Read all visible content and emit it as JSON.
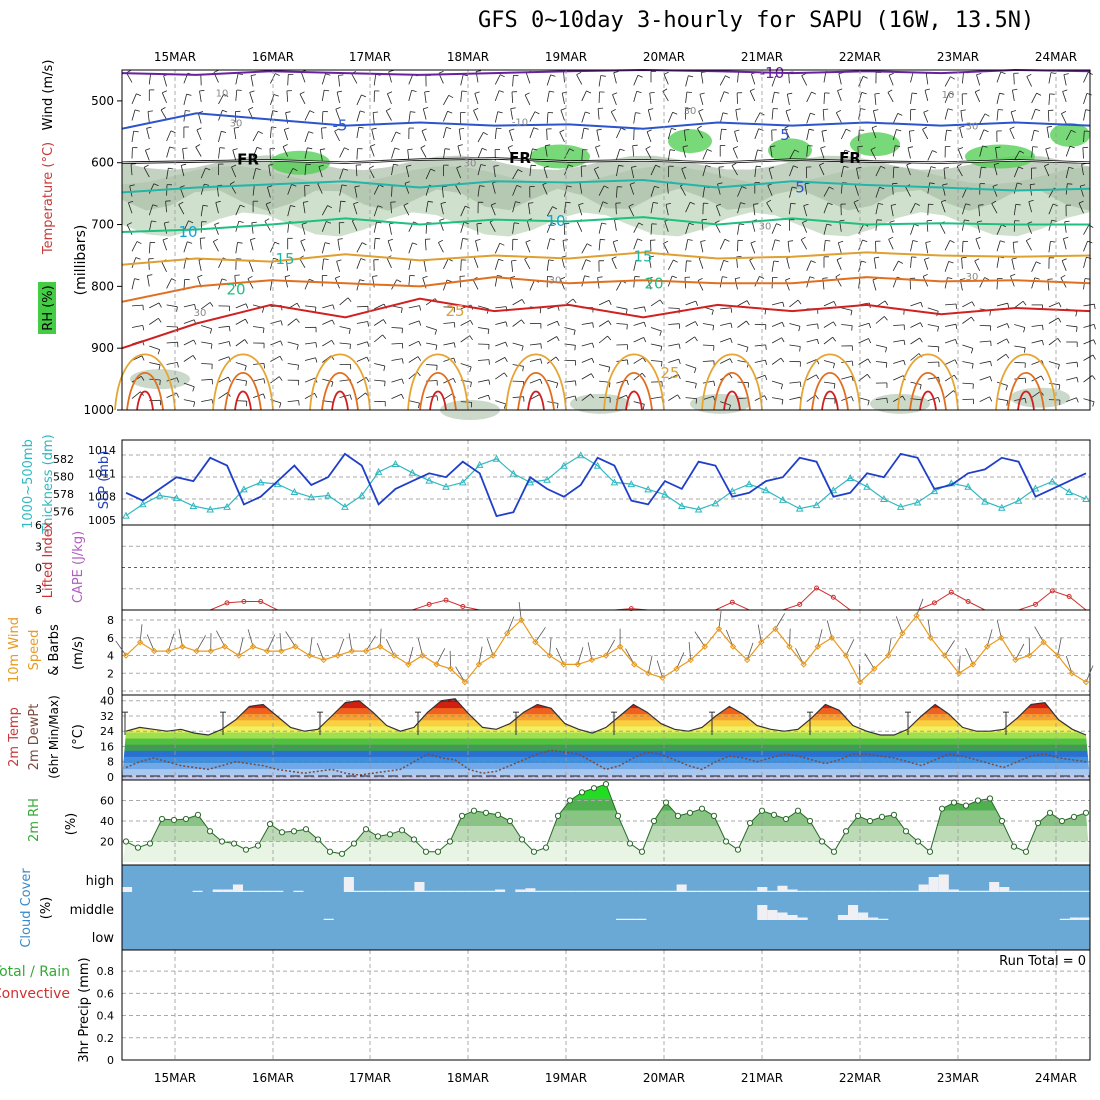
{
  "title": "GFS 0~10day 3-hourly for SAPU (16W, 13.5N)",
  "dates": [
    "15MAR",
    "16MAR",
    "17MAR",
    "18MAR",
    "19MAR",
    "20MAR",
    "21MAR",
    "22MAR",
    "23MAR",
    "24MAR"
  ],
  "colors": {
    "temp_lines": [
      "#6a1fa0",
      "#2a55cc",
      "#1aa0d8",
      "#22b5a8",
      "#1fbf80",
      "#e0a030",
      "#e07020",
      "#d02020"
    ],
    "rh_fill": [
      "#eef5ea",
      "#cfe1cc",
      "#a9bfa6",
      "#55d055"
    ],
    "slp": "#1f3fc8",
    "thickness": "#30b8c0",
    "lifted_index": "#d03030",
    "wind_speed": "#e89a20",
    "rh2m": "#33aa33",
    "cloud": "#6aa9d6",
    "dewpt": "#7a4a40"
  },
  "chart_data": [
    {
      "panel": "upper-air",
      "type": "heatmap",
      "ylabel": [
        "Wind (m/s)",
        "Temperature (°C)",
        "RH (%)",
        "(millibars)"
      ],
      "y_ticks": [
        500,
        600,
        700,
        800,
        900,
        1000
      ],
      "ylim": [
        1000,
        450
      ],
      "freezing_label": "FR",
      "isotherms": [
        {
          "label": "-10",
          "level_mb": [
            455,
            458,
            452,
            455,
            458,
            455,
            452,
            450,
            452,
            455,
            452,
            455,
            450,
            452
          ]
        },
        {
          "label": "-5",
          "level_mb": [
            545,
            520,
            530,
            540,
            535,
            540,
            538,
            545,
            535,
            540,
            535,
            540,
            535,
            540
          ]
        },
        {
          "label": "FR",
          "level_mb": [
            600,
            598,
            596,
            600,
            595,
            593,
            598,
            596,
            600,
            595,
            598,
            600,
            596,
            600
          ]
        },
        {
          "label": "5",
          "level_mb": [
            648,
            640,
            635,
            630,
            640,
            630,
            632,
            628,
            640,
            630,
            636,
            640,
            645,
            642
          ]
        },
        {
          "label": "10",
          "level_mb": [
            712,
            708,
            700,
            690,
            700,
            692,
            695,
            688,
            700,
            690,
            700,
            698,
            700,
            700
          ]
        },
        {
          "label": "15",
          "level_mb": [
            765,
            755,
            760,
            748,
            758,
            750,
            755,
            745,
            755,
            752,
            745,
            750,
            752,
            750
          ]
        },
        {
          "label": "20",
          "level_mb": [
            825,
            800,
            790,
            795,
            800,
            785,
            795,
            790,
            795,
            795,
            785,
            792,
            790,
            795
          ]
        },
        {
          "label": "25",
          "level_mb": [
            900,
            860,
            830,
            850,
            820,
            840,
            830,
            850,
            830,
            840,
            830,
            845,
            835,
            840
          ]
        }
      ],
      "contour_labels": [
        "10",
        "30",
        "-10",
        "-5",
        "5",
        "10",
        "15",
        "20",
        "25"
      ]
    },
    {
      "panel": "slp-thickness",
      "type": "line",
      "ylabel": [
        "SLP (mb)",
        "Thickness (dm)",
        "1000~500mb"
      ],
      "y_ticks_left": [
        576,
        578,
        580,
        582
      ],
      "y_ticks_right": [
        1005,
        1008,
        1011,
        1014
      ],
      "series": [
        {
          "name": "SLP (mb)",
          "values": [
            1008.5,
            1007.5,
            1009,
            1010.5,
            1010,
            1013,
            1012,
            1007,
            1008,
            1010,
            1012,
            1009.5,
            1010.5,
            1013.5,
            1012,
            1007,
            1009,
            1010,
            1011,
            1010.5,
            1012.5,
            1011,
            1005.5,
            1006,
            1010.5,
            1009,
            1008,
            1009.5,
            1013,
            1012,
            1007.5,
            1007,
            1010,
            1009,
            1012.5,
            1012,
            1008,
            1008.5,
            1010,
            1010.5,
            1013,
            1012.5,
            1008,
            1008.5,
            1011,
            1010.5,
            1013.5,
            1013,
            1009,
            1009.5,
            1011,
            1011.5,
            1013,
            1012.5,
            1008,
            1009,
            1010,
            1011
          ]
        },
        {
          "name": "Thickness (dm)",
          "values": [
            575.5,
            576.8,
            577.8,
            577.5,
            576.6,
            576.2,
            576.5,
            578.5,
            579.3,
            579.1,
            578.2,
            577.6,
            577.8,
            576.5,
            577.8,
            580.5,
            581.4,
            580.4,
            579.5,
            578.8,
            579.3,
            581.3,
            582.0,
            580.3,
            579.3,
            579.6,
            581.2,
            582.4,
            581.2,
            579.3,
            579.1,
            578.5,
            577.9,
            576.6,
            576.2,
            576.9,
            578.3,
            579.1,
            578.4,
            577.3,
            576.3,
            576.7,
            578.4,
            579.8,
            578.8,
            577.4,
            576.5,
            577.0,
            578.3,
            579.2,
            578.8,
            577.1,
            576.4,
            577.2,
            578.6,
            579.4,
            578.2,
            577.4
          ]
        }
      ]
    },
    {
      "panel": "cape-li",
      "type": "line",
      "ylabel": [
        "Lifted Index",
        "CAPE (J/kg)"
      ],
      "y_ticks": [
        -6,
        -3,
        0,
        3,
        6
      ],
      "series": [
        {
          "name": "Lifted Index",
          "values": [
            6,
            6,
            6,
            6,
            6,
            6,
            5,
            4.8,
            4.8,
            6,
            6,
            6,
            6,
            6,
            6,
            6,
            6,
            6,
            5.2,
            4.6,
            5.5,
            6,
            6,
            6,
            6,
            6,
            6,
            6,
            6,
            6,
            5.8,
            6,
            6,
            6,
            6,
            6,
            4.9,
            6,
            6,
            6,
            5.2,
            2.9,
            4.2,
            6,
            6,
            6,
            6,
            6,
            5.0,
            3.5,
            4.8,
            6,
            6,
            6,
            5.2,
            3.3,
            4.1,
            6
          ]
        }
      ]
    },
    {
      "panel": "wind10m",
      "type": "line",
      "ylabel": [
        "10m Wind",
        "Speed",
        "& Barbs",
        "(m/s)"
      ],
      "y_ticks": [
        0,
        2,
        4,
        6,
        8
      ],
      "series": [
        {
          "name": "Speed",
          "values": [
            4,
            5.5,
            4.5,
            4.5,
            5,
            4.5,
            4.5,
            5,
            4,
            5,
            4.5,
            4.5,
            5,
            4,
            3.5,
            4,
            4.5,
            4.5,
            5,
            4,
            3,
            4,
            3,
            2.5,
            1,
            3,
            4,
            6.5,
            8,
            5.5,
            4,
            3,
            3,
            3.5,
            4,
            5,
            3,
            2,
            1.5,
            2.5,
            3.5,
            5,
            7,
            5,
            3.5,
            5.5,
            7,
            5,
            3,
            5,
            6,
            4,
            1,
            2.5,
            4,
            6.5,
            8.5,
            6,
            4,
            2,
            3,
            5,
            6,
            3.5,
            4,
            5.5,
            4,
            2,
            1
          ]
        }
      ]
    },
    {
      "panel": "temp2m",
      "type": "area",
      "ylabel": [
        "2m Temp",
        "2m DewPt",
        "(6hr Min/Max)",
        "(°C)"
      ],
      "y_ticks": [
        0,
        8,
        16,
        24,
        32,
        40
      ],
      "series": [
        {
          "name": "2m Temp",
          "values": [
            24,
            26,
            25,
            24,
            25,
            23,
            22,
            25,
            30,
            37,
            38,
            32,
            26,
            24,
            25,
            32,
            39,
            40,
            34,
            27,
            24,
            26,
            34,
            40,
            41,
            33,
            26,
            25,
            28,
            34,
            38,
            36,
            28,
            25,
            23,
            26,
            32,
            38,
            34,
            28,
            25,
            24,
            26,
            32,
            37,
            33,
            27,
            25,
            24,
            25,
            31,
            38,
            35,
            27,
            24,
            22,
            22,
            25,
            32,
            38,
            33,
            26,
            24,
            24,
            25,
            31,
            38,
            39,
            30,
            25,
            22
          ]
        },
        {
          "name": "2m DewPt",
          "values": [
            5,
            8,
            10,
            8,
            6,
            5,
            4,
            6,
            8,
            7,
            6,
            4,
            3,
            2,
            3,
            4,
            2,
            1,
            2,
            3,
            4,
            8,
            12,
            10,
            9,
            4,
            2,
            3,
            6,
            9,
            12,
            14,
            13,
            12,
            8,
            4,
            6,
            10,
            13,
            12,
            9,
            6,
            4,
            8,
            11,
            10,
            8,
            10,
            12,
            11,
            9,
            7,
            9,
            12,
            12,
            11,
            10,
            8,
            6,
            9,
            12,
            11,
            9,
            7,
            5,
            8,
            11,
            12,
            10,
            9,
            8
          ]
        }
      ]
    },
    {
      "panel": "rh2m",
      "type": "area",
      "ylabel": [
        "2m RH",
        "(%)"
      ],
      "y_ticks": [
        20,
        40,
        60
      ],
      "series": [
        {
          "name": "2m RH",
          "values": [
            20,
            14,
            18,
            42,
            41,
            42,
            46,
            30,
            20,
            18,
            12,
            16,
            37,
            29,
            30,
            32,
            22,
            10,
            8,
            18,
            32,
            25,
            27,
            31,
            22,
            10,
            10,
            20,
            45,
            50,
            48,
            46,
            40,
            22,
            10,
            14,
            45,
            60,
            68,
            72,
            76,
            45,
            18,
            10,
            40,
            58,
            45,
            48,
            52,
            45,
            20,
            12,
            38,
            50,
            46,
            42,
            50,
            40,
            20,
            10,
            30,
            45,
            40,
            44,
            46,
            30,
            20,
            10,
            52,
            58,
            55,
            60,
            62,
            40,
            15,
            10,
            38,
            48,
            40,
            44,
            48
          ]
        }
      ]
    },
    {
      "panel": "cloud",
      "type": "bar",
      "ylabel": [
        "Cloud Cover",
        "(%)"
      ],
      "layer_labels": [
        "high",
        "middle",
        "low"
      ],
      "series": [
        {
          "name": "high",
          "values": [
            20,
            0,
            0,
            0,
            0,
            0,
            0,
            5,
            0,
            10,
            10,
            30,
            5,
            5,
            5,
            5,
            0,
            5,
            0,
            0,
            0,
            0,
            60,
            5,
            5,
            5,
            5,
            5,
            5,
            40,
            5,
            5,
            5,
            5,
            5,
            5,
            5,
            10,
            0,
            10,
            15,
            5,
            5,
            5,
            5,
            5,
            5,
            5,
            5,
            5,
            5,
            5,
            5,
            5,
            5,
            30,
            5,
            5,
            5,
            5,
            5,
            5,
            5,
            20,
            5,
            25,
            10,
            5,
            5,
            5,
            5,
            5,
            5,
            5,
            5,
            5,
            5,
            5,
            5,
            30,
            60,
            70,
            10,
            5,
            5,
            5,
            40,
            20,
            5,
            5,
            5,
            5,
            5,
            5,
            5,
            5
          ]
        },
        {
          "name": "middle",
          "values": [
            0,
            0,
            0,
            0,
            0,
            0,
            0,
            0,
            0,
            0,
            0,
            0,
            0,
            0,
            0,
            0,
            0,
            0,
            0,
            0,
            5,
            0,
            0,
            0,
            0,
            0,
            0,
            0,
            0,
            0,
            0,
            0,
            0,
            0,
            0,
            0,
            0,
            0,
            0,
            0,
            0,
            0,
            0,
            0,
            0,
            0,
            0,
            0,
            0,
            5,
            5,
            5,
            0,
            0,
            0,
            0,
            0,
            0,
            0,
            0,
            0,
            0,
            0,
            60,
            40,
            30,
            20,
            10,
            0,
            0,
            0,
            20,
            60,
            30,
            10,
            5,
            0,
            0,
            0,
            0,
            0,
            0,
            0,
            0,
            0,
            0,
            0,
            0,
            0,
            0,
            0,
            0,
            0,
            5,
            10,
            10
          ]
        }
      ]
    },
    {
      "panel": "precip",
      "type": "bar",
      "ylabel": [
        "3hr Precip (mm)",
        "Total / Rain",
        "Convective"
      ],
      "y_ticks": [
        0,
        0.2,
        0.4,
        0.6,
        0.8
      ],
      "ylim": [
        0,
        0.9
      ],
      "run_total_label": "Run Total = 0",
      "values": []
    }
  ]
}
